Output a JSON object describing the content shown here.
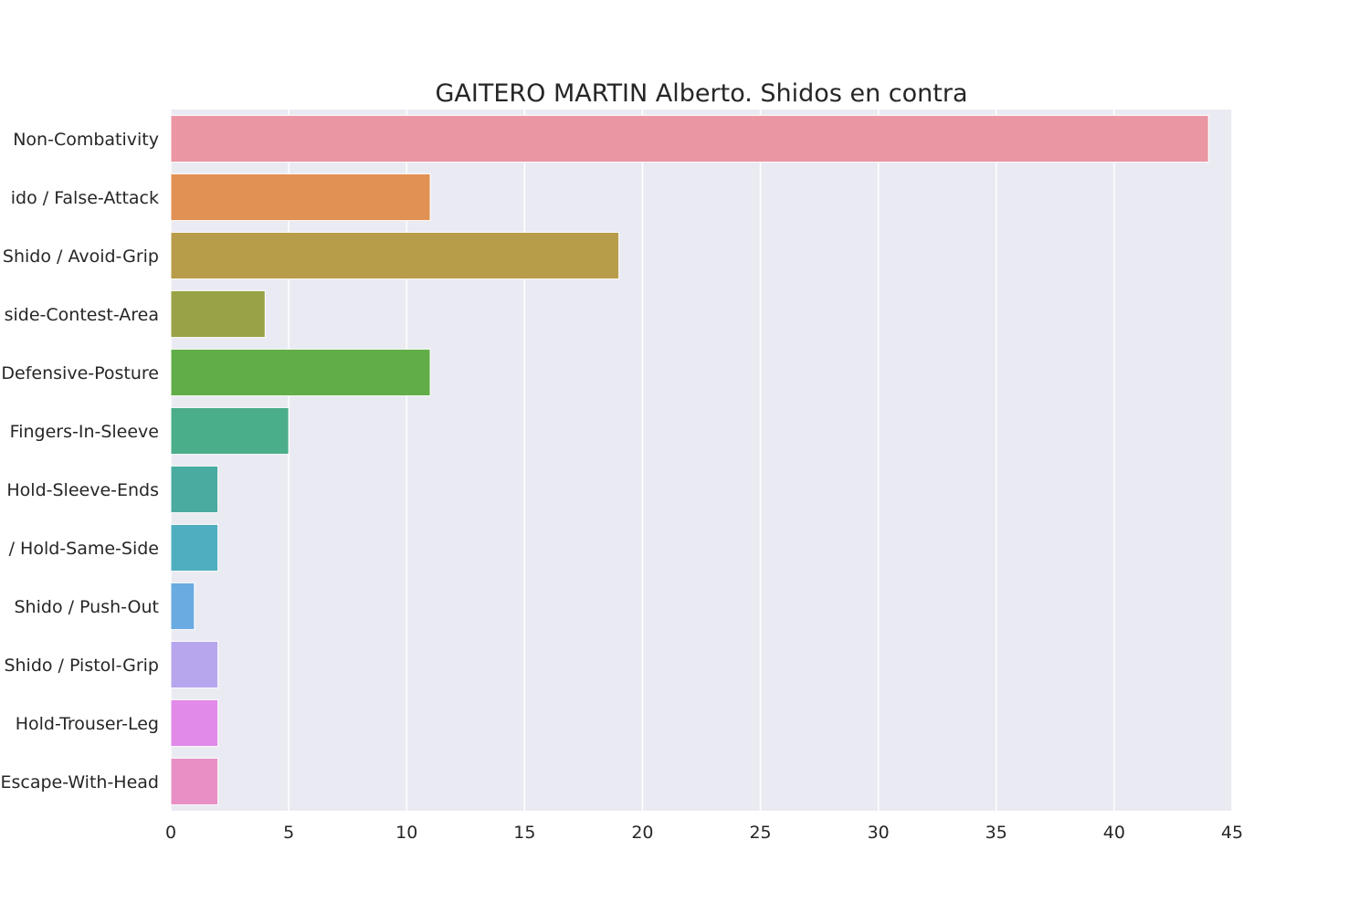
{
  "chart_data": {
    "type": "bar",
    "orientation": "horizontal",
    "title": "GAITERO MARTIN Alberto. Shidos en contra",
    "xlabel": "",
    "ylabel": "",
    "xlim": [
      0,
      45
    ],
    "x_ticks": [
      "0",
      "5",
      "10",
      "15",
      "20",
      "25",
      "30",
      "35",
      "40",
      "45"
    ],
    "grid": true,
    "background_color": "#eaeaf2",
    "categories": [
      "Non-Combativity",
      "ido / False-Attack",
      "Shido / Avoid-Grip",
      "side-Contest-Area",
      "Defensive-Posture",
      "Fingers-In-Sleeve",
      "Hold-Sleeve-Ends",
      "/ Hold-Same-Side",
      "Shido / Push-Out",
      "Shido / Pistol-Grip",
      "Hold-Trouser-Leg",
      "Escape-With-Head"
    ],
    "values": [
      44,
      11,
      19,
      4,
      11,
      5,
      2,
      2,
      1,
      2,
      2,
      2
    ],
    "colors": [
      "#ea96a3",
      "#e19153",
      "#b79c4a",
      "#99a246",
      "#61ae48",
      "#4bae8a",
      "#4aaba1",
      "#4faec0",
      "#6aabe1",
      "#b7a6ed",
      "#e18ae9",
      "#e890c6"
    ]
  }
}
